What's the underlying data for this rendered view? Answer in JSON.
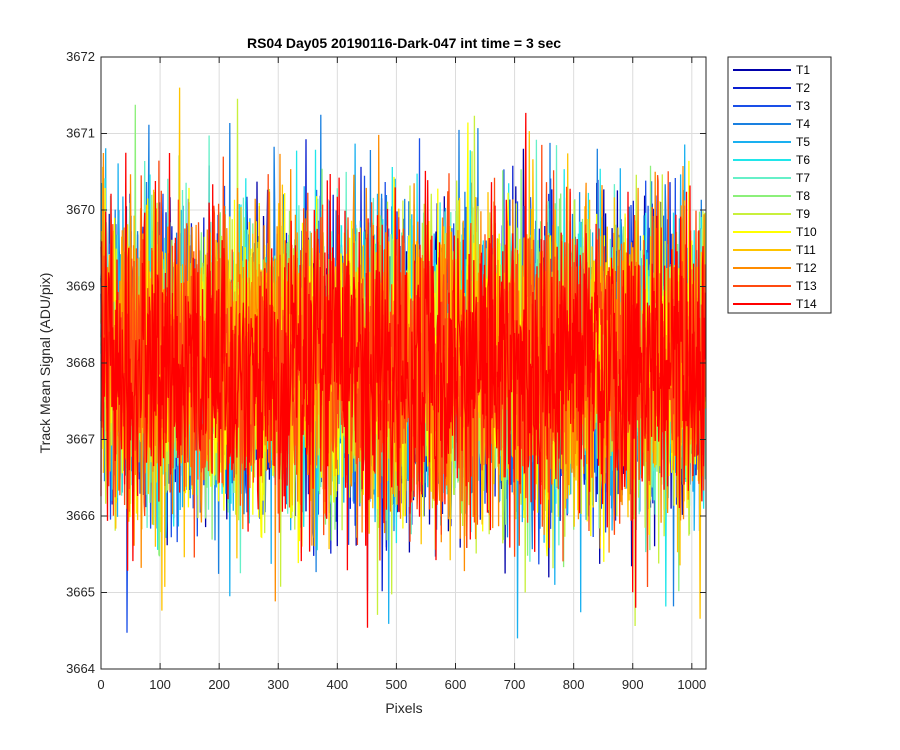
{
  "chart_data": {
    "type": "line",
    "title": "RS04 Day05 20190116-Dark-047 int time = 3 sec",
    "xlabel": "Pixels",
    "ylabel": "Track Mean Signal (ADU/pix)",
    "xlim": [
      0,
      1024
    ],
    "ylim": [
      3664,
      3672
    ],
    "xticks": [
      0,
      100,
      200,
      300,
      400,
      500,
      600,
      700,
      800,
      900,
      1000
    ],
    "yticks": [
      3664,
      3665,
      3666,
      3667,
      3668,
      3669,
      3670,
      3671,
      3672
    ],
    "grid": true,
    "legend_position": "outside-top-right",
    "n_points": 1024,
    "noise": {
      "mean": 3668.0,
      "typical_range": [
        3665.8,
        3670.2
      ],
      "extreme_min": 3664.4,
      "extreme_max": 3671.6
    },
    "series": [
      {
        "name": "T1",
        "color": "#0000aa"
      },
      {
        "name": "T2",
        "color": "#0a1fd0"
      },
      {
        "name": "T3",
        "color": "#1a4fe8"
      },
      {
        "name": "T4",
        "color": "#1a80e0"
      },
      {
        "name": "T5",
        "color": "#1ab0f0"
      },
      {
        "name": "T6",
        "color": "#20e6ea"
      },
      {
        "name": "T7",
        "color": "#66f0c8"
      },
      {
        "name": "T8",
        "color": "#8cf07a"
      },
      {
        "name": "T9",
        "color": "#c8f03c"
      },
      {
        "name": "T10",
        "color": "#ffff00"
      },
      {
        "name": "T11",
        "color": "#ffc400"
      },
      {
        "name": "T12",
        "color": "#ff8c00"
      },
      {
        "name": "T13",
        "color": "#ff4a10"
      },
      {
        "name": "T14",
        "color": "#ff0000"
      }
    ]
  }
}
